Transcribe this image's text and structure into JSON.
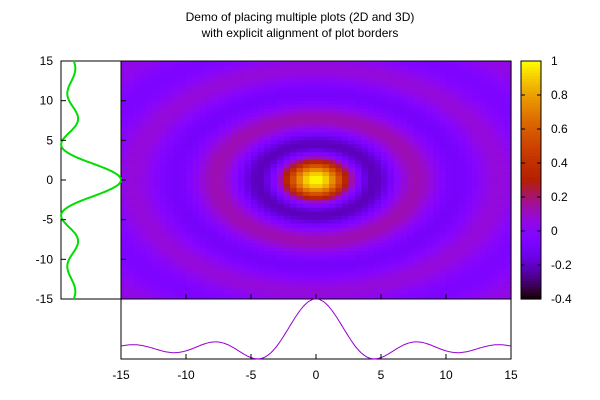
{
  "title_line1": "Demo of placing multiple plots (2D and 3D)",
  "title_line2": "with explicit alignment of plot borders",
  "chart_data": [
    {
      "type": "heatmap",
      "function": "sinc-like radial: sin(r)/r on x,y in [-15,15]",
      "xlim": [
        -15,
        15
      ],
      "ylim": [
        -15,
        15
      ],
      "x_ticks": [
        "-15",
        "-10",
        "-5",
        "0",
        "5",
        "10",
        "15"
      ],
      "y_ticks": [
        "15",
        "10",
        "5",
        "0",
        "-5",
        "-10",
        "-15"
      ],
      "colorbar": {
        "range": [
          -0.4,
          1
        ],
        "ticks": [
          "1",
          "0.8",
          "0.6",
          "0.4",
          "0.2",
          "0",
          "-0.2",
          "-0.4"
        ],
        "colormap": "gnuplot pm3d (black-purple-red-yellow)"
      }
    },
    {
      "type": "line",
      "placement": "left",
      "series_color": "#00dd00",
      "description": "profile along y at x=0",
      "ylim": [
        -15,
        15
      ]
    },
    {
      "type": "line",
      "placement": "bottom",
      "series_color": "#9400d3",
      "description": "profile along x at y=0",
      "xlim": [
        -15,
        15
      ]
    }
  ]
}
